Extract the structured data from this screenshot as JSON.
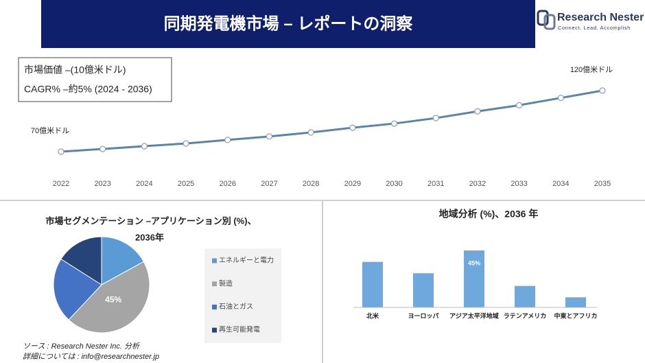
{
  "header": {
    "title": "同期発電機市場 – レポートの洞察",
    "brand": "Research Nester",
    "tagline": "Connect. Lead. Accomplish"
  },
  "info": {
    "market_value": "市場価値 –(10億米ドル)",
    "cagr": "CAGR% –約5% (2024 - 2036)"
  },
  "chart_data": [
    {
      "type": "line",
      "x": [
        2022,
        2023,
        2024,
        2025,
        2026,
        2027,
        2028,
        2029,
        2030,
        2031,
        2032,
        2033,
        2034,
        2035
      ],
      "values": [
        70,
        72.2,
        74.5,
        76.7,
        79.6,
        82.4,
        85.7,
        89.6,
        93,
        97.5,
        103,
        108,
        114,
        120
      ],
      "value_labels": [
        "70億米ドル",
        null,
        null,
        null,
        null,
        null,
        null,
        null,
        null,
        null,
        null,
        null,
        null,
        "120億米ドル"
      ],
      "color": "#5b84ab"
    },
    {
      "type": "pie",
      "title": [
        "市場セグメンテーション –アプリケーション別 (%)、",
        "2036年"
      ],
      "series": [
        {
          "name": "エネルギーと電力",
          "color": "#5b9bd5",
          "values": [
            17
          ]
        },
        {
          "name": "製造",
          "color": "#a5a5a5",
          "values": [
            45
          ]
        },
        {
          "name": "石油とガス",
          "color": "#4472c4",
          "values": [
            22
          ]
        },
        {
          "name": "再生可能発電",
          "color": "#264478",
          "values": [
            16
          ]
        }
      ],
      "value_labels": [
        null,
        "45%",
        null,
        null
      ]
    },
    {
      "type": "bar",
      "title": "地域分析 (%)、2036 年",
      "categories": [
        "北米",
        "ヨーロッパ",
        "アジア太平洋地域",
        "ラテンアメリカ",
        "中東とアフリカ"
      ],
      "values": [
        36,
        27,
        45,
        17,
        8
      ],
      "value_labels": [
        null,
        null,
        "45%",
        null,
        null
      ],
      "color": "#6fa8dc"
    }
  ],
  "footer": {
    "source": "ソース : Research Nester Inc. 分析",
    "contact": "詳細については : info@researchnester.jp"
  }
}
